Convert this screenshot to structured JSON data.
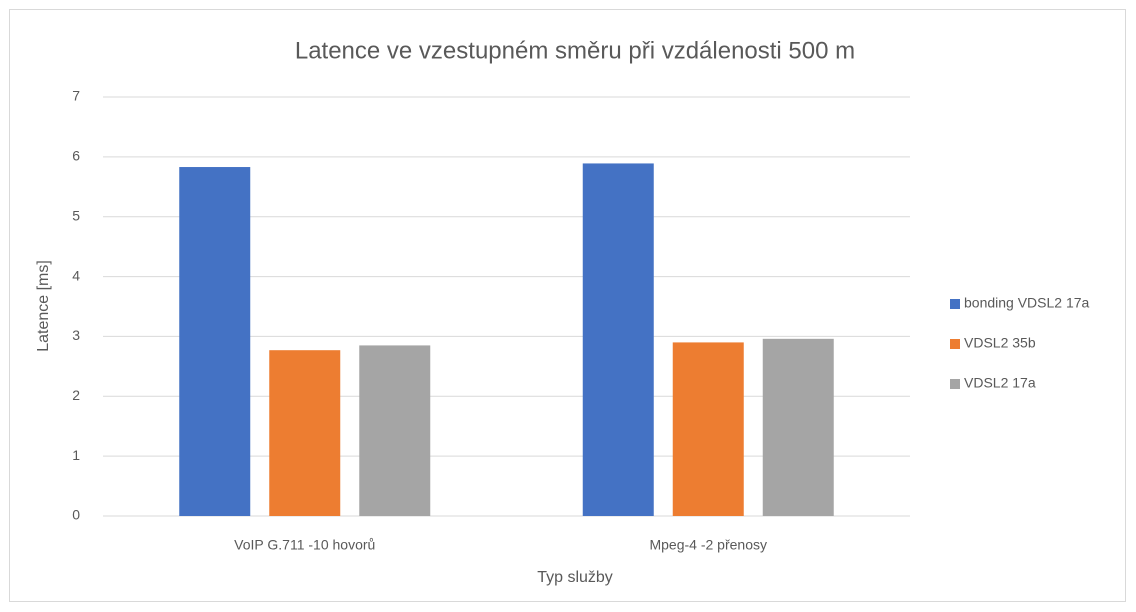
{
  "chart_data": {
    "type": "bar",
    "title": "Latence ve vzestupném směru při vzdálenosti 500 m",
    "x_label": "Typ služby",
    "y_label": "Latence [ms]",
    "categories": [
      "VoIP G.711 -10 hovorů",
      "Mpeg-4 -2 přenosy"
    ],
    "series": [
      {
        "name": "bonding VDSL2 17a",
        "color": "#4472c4",
        "values": [
          5.83,
          5.89
        ]
      },
      {
        "name": "VDSL2 35b",
        "color": "#ed7d31",
        "values": [
          2.77,
          2.9
        ]
      },
      {
        "name": "VDSL2 17a",
        "color": "#a5a5a5",
        "values": [
          2.85,
          2.96
        ]
      }
    ],
    "ylim": [
      0,
      7
    ],
    "yticks": [
      0,
      1,
      2,
      3,
      4,
      5,
      6,
      7
    ],
    "grid": true,
    "legend": "right"
  }
}
